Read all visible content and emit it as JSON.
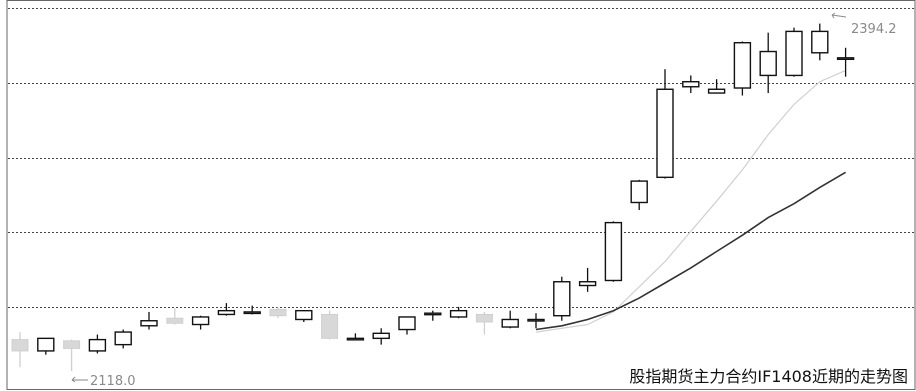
{
  "chart_data": {
    "type": "candlestick",
    "title": "",
    "caption": "股指期货主力合约IF1408近期的走势图",
    "annotations": {
      "high_label": "2394.2",
      "low_label": "2118.0"
    },
    "grid": true,
    "ylim": [
      2109.3,
      2406.6
    ],
    "candles": [
      {
        "o": 2143,
        "c": 2134,
        "h": 2149,
        "l": 2121
      },
      {
        "o": 2134,
        "c": 2144,
        "h": 2144,
        "l": 2131
      },
      {
        "o": 2142,
        "c": 2136,
        "h": 2143,
        "l": 2118
      },
      {
        "o": 2134,
        "c": 2143,
        "h": 2147,
        "l": 2132
      },
      {
        "o": 2139,
        "c": 2149,
        "h": 2151,
        "l": 2136
      },
      {
        "o": 2154,
        "c": 2158,
        "h": 2165,
        "l": 2151
      },
      {
        "o": 2160,
        "c": 2156,
        "h": 2168,
        "l": 2155
      },
      {
        "o": 2155,
        "c": 2161,
        "h": 2162,
        "l": 2151
      },
      {
        "o": 2163,
        "c": 2166,
        "h": 2172,
        "l": 2162
      },
      {
        "o": 2165,
        "c": 2165,
        "h": 2170,
        "l": 2163
      },
      {
        "o": 2167,
        "c": 2162,
        "h": 2169,
        "l": 2160
      },
      {
        "o": 2159,
        "c": 2166,
        "h": 2166,
        "l": 2157
      },
      {
        "o": 2163,
        "c": 2144,
        "h": 2166,
        "l": 2143
      },
      {
        "o": 2144,
        "c": 2144,
        "h": 2148,
        "l": 2143
      },
      {
        "o": 2144,
        "c": 2148,
        "h": 2152,
        "l": 2139
      },
      {
        "o": 2151,
        "c": 2161,
        "h": 2161,
        "l": 2147
      },
      {
        "o": 2164,
        "c": 2164,
        "h": 2166,
        "l": 2158
      },
      {
        "o": 2161,
        "c": 2166,
        "h": 2169,
        "l": 2160
      },
      {
        "o": 2163,
        "c": 2157,
        "h": 2165,
        "l": 2147
      },
      {
        "o": 2153,
        "c": 2159,
        "h": 2166,
        "l": 2152
      },
      {
        "o": 2159,
        "c": 2159,
        "h": 2164,
        "l": 2152
      },
      {
        "o": 2162,
        "c": 2189,
        "h": 2193,
        "l": 2158
      },
      {
        "o": 2186,
        "c": 2189,
        "h": 2200,
        "l": 2181
      },
      {
        "o": 2190,
        "c": 2236,
        "h": 2237,
        "l": 2189
      },
      {
        "o": 2252,
        "c": 2269,
        "h": 2270,
        "l": 2246
      },
      {
        "o": 2272,
        "c": 2342,
        "h": 2358,
        "l": 2271
      },
      {
        "o": 2344,
        "c": 2348,
        "h": 2353,
        "l": 2339
      },
      {
        "o": 2339,
        "c": 2342,
        "h": 2350,
        "l": 2339
      },
      {
        "o": 2343,
        "c": 2379,
        "h": 2380,
        "l": 2337
      },
      {
        "o": 2353,
        "c": 2372,
        "h": 2387,
        "l": 2339
      },
      {
        "o": 2353,
        "c": 2388,
        "h": 2391,
        "l": 2352
      },
      {
        "o": 2371,
        "c": 2388,
        "h": 2394.2,
        "l": 2365
      },
      {
        "o": 2367,
        "c": 2367,
        "h": 2375,
        "l": 2352
      }
    ],
    "series": [
      {
        "type": "line",
        "color": "#d0d0d0",
        "values": [
          null,
          null,
          null,
          null,
          null,
          null,
          null,
          null,
          null,
          null,
          null,
          null,
          null,
          null,
          null,
          null,
          null,
          null,
          null,
          null,
          2149,
          2152,
          2155,
          2165,
          2185,
          2205,
          2229,
          2253,
          2278,
          2306,
          2330,
          2348,
          2357
        ]
      },
      {
        "type": "line",
        "color": "#333333",
        "values": [
          null,
          null,
          null,
          null,
          null,
          null,
          null,
          null,
          null,
          null,
          null,
          null,
          null,
          null,
          null,
          null,
          null,
          null,
          null,
          null,
          2151,
          2154,
          2159,
          2166,
          2176,
          2188,
          2200,
          2213,
          2226,
          2240,
          2251,
          2264,
          2276
        ]
      }
    ]
  },
  "colors": {
    "up_stroke": "#111111",
    "up_fill": "#ffffff",
    "down_fill": "#d8d8d8",
    "down_stroke": "#cfcfcf",
    "grid": "#444444",
    "label": "#8a8a8a"
  }
}
